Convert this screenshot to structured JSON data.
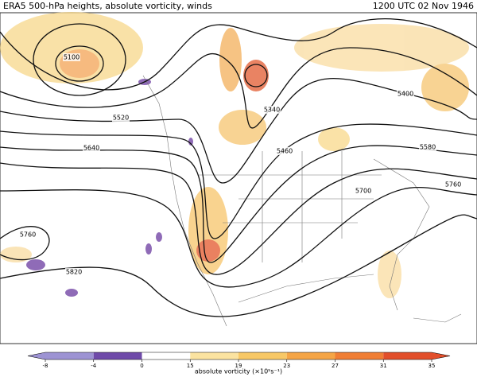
{
  "header": {
    "title": "ERA5 500-hPa heights, absolute vorticity, winds",
    "timestamp": "1200 UTC 02 Nov 1946"
  },
  "contour_labels": [
    5100,
    5520,
    5640,
    5760,
    5820,
    5340,
    5460,
    5400,
    5580,
    5700,
    5760
  ],
  "colorbar": {
    "ticks": [
      -8,
      -4,
      0,
      15,
      19,
      23,
      27,
      31,
      35
    ],
    "colors": [
      "#9d93d3",
      "#6f4aa9",
      "#ffffff",
      "#fbe3a0",
      "#f8c866",
      "#f5a546",
      "#f07e35",
      "#e24f2b"
    ],
    "label": "absolute vorticity (×10⁵s⁻¹)"
  }
}
